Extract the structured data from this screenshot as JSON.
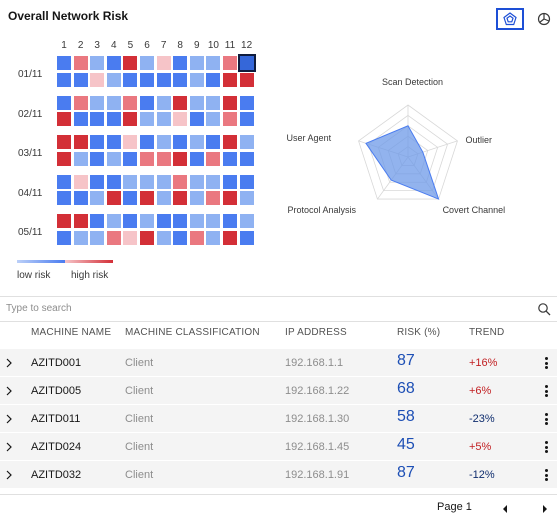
{
  "header": {
    "title": "Overall Network Risk"
  },
  "toolbar": {
    "radar_view_icon": "radar-chart-icon",
    "pie_view_icon": "pie-chart-icon"
  },
  "heatmap": {
    "columns": [
      "1",
      "2",
      "3",
      "4",
      "5",
      "6",
      "7",
      "8",
      "9",
      "10",
      "11",
      "12"
    ],
    "rows": [
      {
        "label": "01/11",
        "cells": [
          [
            "B",
            "R2",
            "B1",
            "B",
            "R",
            "B1",
            "R1",
            "B",
            "B1",
            "B1",
            "R2",
            "SEL"
          ],
          [
            "B",
            "B",
            "R1",
            "B1",
            "B",
            "B",
            "B",
            "B",
            "B1",
            "B",
            "R",
            "R"
          ]
        ]
      },
      {
        "label": "02/11",
        "cells": [
          [
            "B",
            "R2",
            "B1",
            "B1",
            "R2",
            "B",
            "B1",
            "R",
            "B1",
            "B1",
            "R",
            "B"
          ],
          [
            "R",
            "B",
            "B",
            "B",
            "R",
            "B1",
            "B1",
            "R1",
            "B",
            "B1",
            "R2",
            "B"
          ]
        ]
      },
      {
        "label": "03/11",
        "cells": [
          [
            "R",
            "R",
            "B",
            "B",
            "R1",
            "B",
            "B1",
            "B",
            "B1",
            "B",
            "R",
            "B1"
          ],
          [
            "R",
            "B1",
            "B",
            "B1",
            "B",
            "R2",
            "R2",
            "R",
            "B",
            "R2",
            "B",
            "B"
          ]
        ]
      },
      {
        "label": "04/11",
        "cells": [
          [
            "B",
            "R1",
            "B",
            "B",
            "B1",
            "B1",
            "B1",
            "R2",
            "B1",
            "B1",
            "B",
            "B"
          ],
          [
            "B",
            "B",
            "B1",
            "R",
            "B",
            "R",
            "B1",
            "R",
            "B1",
            "R2",
            "R",
            "B1"
          ]
        ]
      },
      {
        "label": "05/11",
        "cells": [
          [
            "R",
            "R",
            "B",
            "B1",
            "B",
            "B1",
            "B",
            "B",
            "B1",
            "B1",
            "B",
            "B1"
          ],
          [
            "B",
            "B1",
            "B1",
            "R2",
            "R1",
            "R",
            "B1",
            "B",
            "R2",
            "B1",
            "R",
            "B"
          ]
        ]
      }
    ],
    "palette": {
      "B": "#4a7cf0",
      "B1": "#8fb2f2",
      "R": "#d32f37",
      "R1": "#f6c4c8",
      "R2": "#ea7880",
      "SEL": "#3567d9"
    },
    "legend": {
      "low_label": "low risk",
      "high_label": "high risk"
    }
  },
  "radar": {
    "axes": [
      "Scan Detection",
      "Outlier",
      "Covert Channel",
      "Protocol Analysis",
      "User Agent"
    ],
    "values": [
      0.6,
      0.3,
      1.0,
      0.55,
      0.85
    ],
    "max": 1,
    "levels": 5,
    "fill_color": "#6e9ae8",
    "stroke_color": "#4a7cf0"
  },
  "search": {
    "placeholder": "Type to search"
  },
  "table": {
    "headers": {
      "name": "MACHINE NAME",
      "classification": "MACHINE CLASSIFICATION",
      "ip": "IP ADDRESS",
      "risk": "RISK (%)",
      "trend": "TREND"
    },
    "rows": [
      {
        "name": "AZITD001",
        "classification": "Client",
        "ip": "192.168.1.1",
        "risk": "87",
        "trend": "+16%",
        "direction": "up"
      },
      {
        "name": "AZITD005",
        "classification": "Client",
        "ip": "192.168.1.22",
        "risk": "68",
        "trend": "+6%",
        "direction": "up"
      },
      {
        "name": "AZITD011",
        "classification": "Client",
        "ip": "192.168.1.30",
        "risk": "58",
        "trend": "-23%",
        "direction": "down"
      },
      {
        "name": "AZITD024",
        "classification": "Client",
        "ip": "192.168.1.45",
        "risk": "45",
        "trend": "+5%",
        "direction": "up"
      },
      {
        "name": "AZITD032",
        "classification": "Client",
        "ip": "192.168.1.91",
        "risk": "87",
        "trend": "-12%",
        "direction": "down"
      }
    ]
  },
  "pagination": {
    "label": "Page 1"
  }
}
